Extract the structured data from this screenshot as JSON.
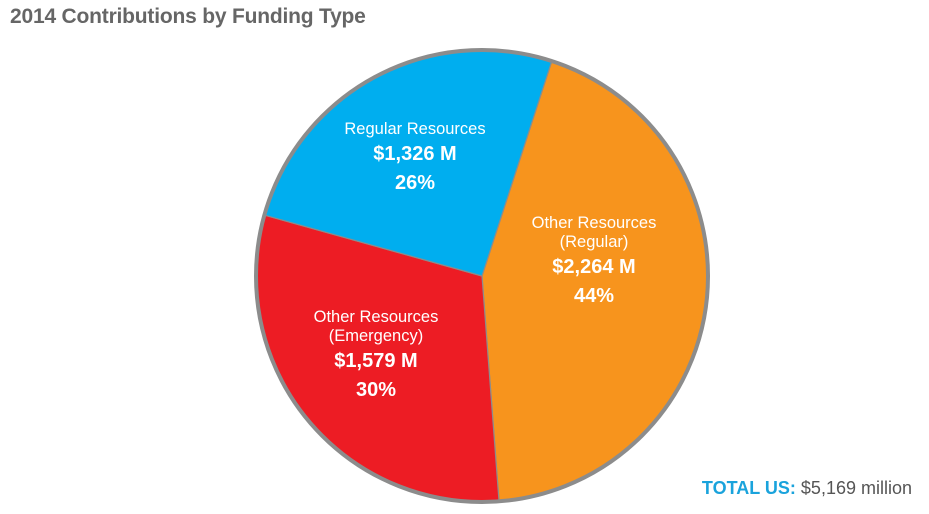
{
  "chart_data": {
    "type": "pie",
    "title": "2014 Contributions by Funding Type",
    "slices": [
      {
        "name_lines": [
          "Other Resources",
          "(Regular)"
        ],
        "value_label": "$2,264 M",
        "percent_label": "44%",
        "value": 2264,
        "color": "#f7941d"
      },
      {
        "name_lines": [
          "Other Resources",
          "(Emergency)"
        ],
        "value_label": "$1,579 M",
        "percent_label": "30%",
        "value": 1579,
        "color": "#ed1c24"
      },
      {
        "name_lines": [
          "Regular Resources"
        ],
        "value_label": "$1,326 M",
        "percent_label": "26%",
        "value": 1326,
        "color": "#00aeef"
      }
    ],
    "total": {
      "label": "TOTAL US:",
      "value": "$5,169 million"
    },
    "outline_color": "#8c8c8c"
  }
}
